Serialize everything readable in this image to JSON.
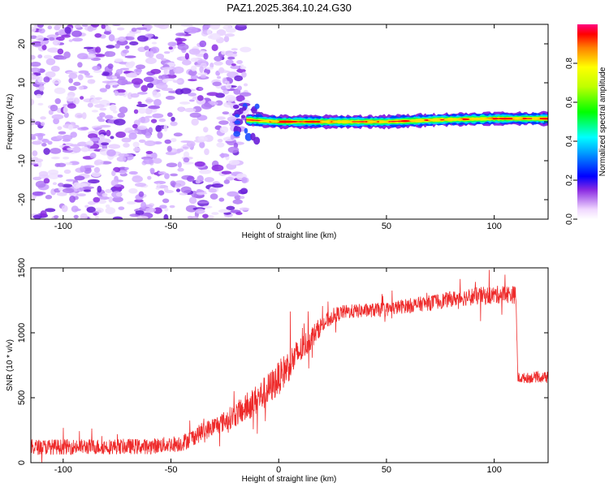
{
  "title": "PAZ1.2025.364.10.24.G30",
  "chart_data": [
    {
      "type": "heatmap",
      "xlabel": "Height of straight line (km)",
      "ylabel": "Frequency (Hz)",
      "xlim": [
        -115,
        125
      ],
      "ylim": [
        -25,
        25
      ],
      "xticks": [
        -100,
        -50,
        0,
        50,
        100
      ],
      "yticks": [
        -20,
        -10,
        0,
        10,
        20
      ],
      "noise_region_x": [
        -115,
        -15
      ],
      "signal_center_hz": [
        {
          "x": -15,
          "y": 0.5
        },
        {
          "x": 0,
          "y": 0.0
        },
        {
          "x": 25,
          "y": 0.0
        },
        {
          "x": 50,
          "y": 0.0
        },
        {
          "x": 75,
          "y": 0.5
        },
        {
          "x": 100,
          "y": 0.8
        },
        {
          "x": 125,
          "y": 0.8
        }
      ],
      "colorbar": {
        "label": "Normalized spectral amplitude",
        "range": [
          0,
          1
        ],
        "ticks": [
          "0.0",
          "0.2",
          "0.4",
          "0.6",
          "0.8"
        ]
      }
    },
    {
      "type": "line",
      "xlabel": "Height of straight line (km)",
      "ylabel": "SNR (10 * v/v)",
      "xlim": [
        -115,
        125
      ],
      "ylim": [
        0,
        1500
      ],
      "xticks": [
        -100,
        -50,
        0,
        50,
        100
      ],
      "yticks": [
        0,
        500,
        1000,
        1500
      ],
      "color": "#ee2a2a",
      "envelope": {
        "x": [
          -115,
          -60,
          -45,
          -35,
          -25,
          -15,
          -5,
          0,
          5,
          10,
          15,
          20,
          25,
          30,
          40,
          50,
          60,
          70,
          80,
          90,
          100,
          105,
          110,
          111,
          125
        ],
        "mean": [
          120,
          125,
          150,
          240,
          320,
          420,
          560,
          650,
          760,
          860,
          960,
          1060,
          1130,
          1160,
          1170,
          1180,
          1210,
          1230,
          1260,
          1280,
          1290,
          1300,
          1290,
          650,
          660
        ],
        "spread": [
          60,
          60,
          65,
          70,
          80,
          110,
          130,
          130,
          130,
          110,
          90,
          70,
          60,
          55,
          55,
          55,
          55,
          60,
          60,
          70,
          70,
          70,
          70,
          40,
          40
        ]
      }
    }
  ]
}
